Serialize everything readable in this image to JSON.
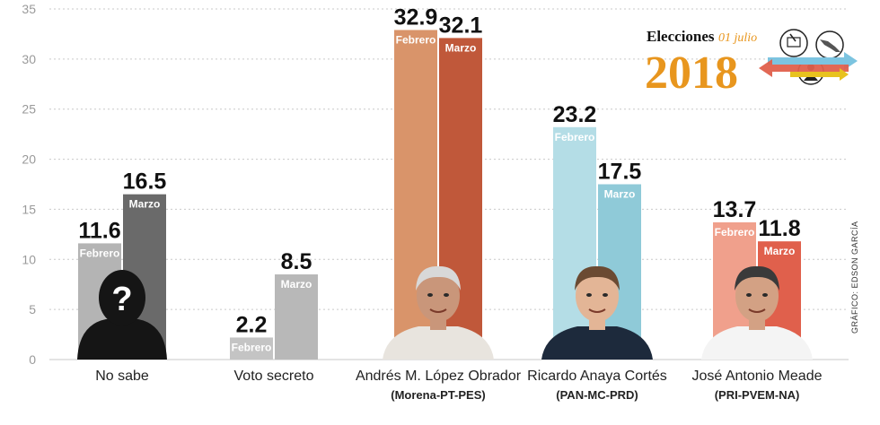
{
  "chart_data": {
    "type": "bar",
    "categories": [
      "No sabe",
      "Voto secreto",
      "Andrés M. López Obrador",
      "Ricardo Anaya Cortés",
      "José  Antonio Meade"
    ],
    "subcategories": [
      "",
      "",
      "(Morena-PT-PES)",
      "(PAN-MC-PRD)",
      "(PRI-PVEM-NA)"
    ],
    "series": [
      {
        "name": "Febrero",
        "values": [
          11.6,
          2.2,
          32.9,
          23.2,
          13.7
        ]
      },
      {
        "name": "Marzo",
        "values": [
          16.5,
          8.5,
          32.1,
          17.5,
          11.8
        ]
      }
    ],
    "value_labels": {
      "Febrero": [
        "11.6",
        "2.2",
        "32.9",
        "23.2",
        "13.7"
      ],
      "Marzo": [
        "16.5",
        "8.5",
        "32.1",
        "17.5",
        "11.8"
      ]
    },
    "yticks": [
      "0",
      "5",
      "10",
      "15",
      "20",
      "25",
      "30",
      "35"
    ],
    "ylim": [
      0,
      35
    ],
    "grid": true,
    "legend": "none",
    "colors": {
      "Febrero": [
        "#b4b4b4",
        "#c4c4c4",
        "#d9946a",
        "#b4dde6",
        "#f0a08c"
      ],
      "Marzo": [
        "#6a6a6a",
        "#b8b8b8",
        "#c0583a",
        "#8fcad8",
        "#e0604c"
      ]
    }
  },
  "credit": "GRÁFICO: EDSON GARCÍA",
  "logo": {
    "line1": "Elecciones",
    "line1_sub": "01 julio",
    "year": "2018"
  },
  "icons": [
    "unknown-person-icon",
    "candidate-photo-icon",
    "ballot-icon",
    "mexico-map-icon"
  ]
}
